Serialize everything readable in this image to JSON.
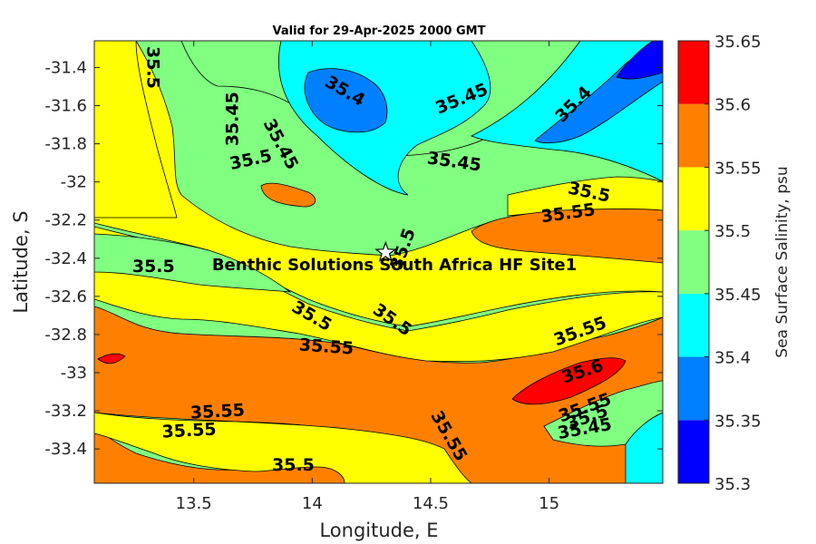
{
  "chart_data": {
    "type": "heatmap",
    "subtype": "filled-contour-map",
    "title": "Valid for 29-Apr-2025 2000 GMT",
    "xlabel": "Longitude, E",
    "ylabel": "Latitude, S",
    "colorbar_label": "Sea Surface Salinity, psu",
    "xlim": [
      13.08,
      15.48
    ],
    "ylim": [
      -33.58,
      -31.26
    ],
    "xticks": [
      "13.5",
      "14",
      "14.5",
      "15"
    ],
    "yticks": [
      "-31.4",
      "-31.6",
      "-31.8",
      "-32",
      "-32.2",
      "-32.4",
      "-32.6",
      "-32.8",
      "-33",
      "-33.2",
      "-33.4"
    ],
    "xtick_values": [
      13.5,
      14,
      14.5,
      15
    ],
    "ytick_values": [
      -31.4,
      -31.6,
      -31.8,
      -32,
      -32.2,
      -32.4,
      -32.6,
      -32.8,
      -33,
      -33.2,
      -33.4
    ],
    "colorbar_ticks": [
      "35.3",
      "35.35",
      "35.4",
      "35.45",
      "35.5",
      "35.55",
      "35.6",
      "35.65"
    ],
    "levels": [
      {
        "min": 35.3,
        "max": 35.35,
        "color": "#0000ff"
      },
      {
        "min": 35.35,
        "max": 35.4,
        "color": "#0080ff"
      },
      {
        "min": 35.4,
        "max": 35.45,
        "color": "#00ffff"
      },
      {
        "min": 35.45,
        "max": 35.5,
        "color": "#80ff80"
      },
      {
        "min": 35.5,
        "max": 35.55,
        "color": "#ffff00"
      },
      {
        "min": 35.55,
        "max": 35.6,
        "color": "#ff8000"
      },
      {
        "min": 35.6,
        "max": 35.65,
        "color": "#ff0000"
      }
    ],
    "contour_labels": [
      {
        "text": "35.5",
        "lon": 13.33,
        "lat": -31.4,
        "angle": 90
      },
      {
        "text": "35.45",
        "lon": 13.66,
        "lat": -31.67,
        "angle": -90
      },
      {
        "text": "35.45",
        "lon": 13.87,
        "lat": -31.8,
        "angle": 62
      },
      {
        "text": "35.4",
        "lon": 14.14,
        "lat": -31.52,
        "angle": 30
      },
      {
        "text": "35.45",
        "lon": 14.63,
        "lat": -31.56,
        "angle": -22
      },
      {
        "text": "35.4",
        "lon": 15.1,
        "lat": -31.59,
        "angle": -45
      },
      {
        "text": "35.5",
        "lon": 13.74,
        "lat": -31.88,
        "angle": -12
      },
      {
        "text": "35.45",
        "lon": 14.6,
        "lat": -31.89,
        "angle": 8
      },
      {
        "text": "35.5",
        "lon": 15.17,
        "lat": -32.05,
        "angle": 12
      },
      {
        "text": "35.55",
        "lon": 15.08,
        "lat": -32.16,
        "angle": -8
      },
      {
        "text": "35.5",
        "lon": 14.38,
        "lat": -32.35,
        "angle": -70
      },
      {
        "text": "35.5",
        "lon": 13.33,
        "lat": -32.44,
        "angle": 0
      },
      {
        "text": "35.5",
        "lon": 14.0,
        "lat": -32.7,
        "angle": 30
      },
      {
        "text": "35.5",
        "lon": 14.34,
        "lat": -32.72,
        "angle": 35
      },
      {
        "text": "35.55",
        "lon": 14.06,
        "lat": -32.86,
        "angle": 4
      },
      {
        "text": "35.55",
        "lon": 15.13,
        "lat": -32.78,
        "angle": -20
      },
      {
        "text": "35.6",
        "lon": 15.14,
        "lat": -32.99,
        "angle": -18
      },
      {
        "text": "35.55",
        "lon": 13.6,
        "lat": -33.2,
        "angle": -3
      },
      {
        "text": "35.55",
        "lon": 13.48,
        "lat": -33.3,
        "angle": -3
      },
      {
        "text": "35.55",
        "lon": 15.15,
        "lat": -33.18,
        "angle": -20
      },
      {
        "text": "35.5",
        "lon": 15.16,
        "lat": -33.23,
        "angle": -20
      },
      {
        "text": "35.45",
        "lon": 15.15,
        "lat": -33.29,
        "angle": -10
      },
      {
        "text": "35.55",
        "lon": 14.58,
        "lat": -33.33,
        "angle": 60
      },
      {
        "text": "35.5",
        "lon": 13.92,
        "lat": -33.48,
        "angle": 0
      }
    ],
    "site": {
      "name": "Benthic Solutions South Africa HF Site1",
      "lon": 14.31,
      "lat": -32.37
    }
  }
}
